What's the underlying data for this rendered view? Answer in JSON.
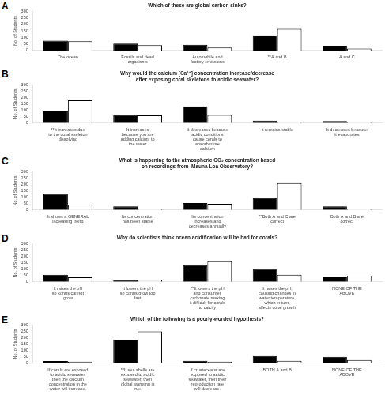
{
  "chart_data": [
    {
      "type": "bar",
      "title": "Which of these are global carbon sinks?",
      "annotations": [
        "A"
      ],
      "y_label": "No. of Students",
      "categories": [
        "The ocean",
        "Fossils and dead\norganisms",
        "Automobile and\nfactory emissions",
        "**A and B",
        "A and C"
      ],
      "series": [
        {
          "color": "black",
          "values": [
            75,
            52,
            43,
            115,
            35
          ]
        },
        {
          "color": "white",
          "values": [
            70,
            40,
            22,
            165,
            15
          ]
        }
      ],
      "ylim": [
        0,
        300
      ],
      "yticks": [
        0,
        50,
        100,
        150,
        200,
        250,
        300
      ],
      "grid": false
    },
    {
      "type": "bar",
      "title": "Why would the calcium [Ca²⁺] concentration increase/decrease\nafter exposing coral skeletons to acidic seawater?",
      "annotations": [
        "B"
      ],
      "y_label": "No. of Students",
      "categories": [
        "**It increases due\nto the coral skeleton\ndissolving",
        "It increases\nbecause you are\nadding calcium to\nthe water",
        "It decreases because\nacidic conditions\ncause corals to\nabsorb more\ncalcium",
        "It remains stable",
        "It decreases because\nit evaporates"
      ],
      "series": [
        {
          "color": "black",
          "values": [
            97,
            62,
            130,
            18,
            15
          ]
        },
        {
          "color": "white",
          "values": [
            178,
            60,
            63,
            10,
            10
          ]
        }
      ],
      "ylim": [
        0,
        300
      ],
      "yticks": [
        0,
        50,
        100,
        150,
        200,
        250,
        300
      ],
      "grid": false
    },
    {
      "type": "bar",
      "title": "What is happening to the atmospheric CO₂ concentration based\non recordings from  Mauna Loa Observatory?",
      "annotations": [
        "C"
      ],
      "y_label": "No. of Students",
      "categories": [
        "It shows a GENERAL\nincreasing trend",
        "Its concentration\nhas been stable",
        "Its concentration\nincreases and\ndecreases annually",
        "**Both A and C are\ncorrect",
        "Both A and B are\ncorrect"
      ],
      "series": [
        {
          "color": "black",
          "values": [
            125,
            28,
            55,
            93,
            28
          ]
        },
        {
          "color": "white",
          "values": [
            42,
            10,
            48,
            210,
            10
          ]
        }
      ],
      "ylim": [
        0,
        300
      ],
      "yticks": [
        0,
        50,
        100,
        150,
        200,
        250,
        300
      ],
      "grid": false
    },
    {
      "type": "bar",
      "title": "Why do scientists think ocean acidification will be bad for corals?",
      "annotations": [
        "D"
      ],
      "y_label": "No. of Students",
      "categories": [
        "It raises the pH\nso corals cannot\ngrow",
        "It lowers the pH\nso corals grow too\nfast",
        "**It lowers the pH\nand consumes\ncarbonate making\nit difficult for corals\nto calcify",
        "It raises the pH,\ncausing changes in\nwater temperature,\nwhich in turn,\naffects coral growth",
        "NONE OF THE\nABOVE"
      ],
      "series": [
        {
          "color": "black",
          "values": [
            55,
            12,
            130,
            100,
            35
          ]
        },
        {
          "color": "white",
          "values": [
            35,
            15,
            160,
            55,
            48
          ]
        }
      ],
      "ylim": [
        0,
        300
      ],
      "yticks": [
        0,
        50,
        100,
        150,
        200,
        250,
        300
      ],
      "grid": false
    },
    {
      "type": "bar",
      "title": "Which of the following is a poorly-worded hypothesis?",
      "annotations": [
        "E"
      ],
      "y_label": "No. of Students",
      "categories": [
        "If corals are exposed\nto acidic seawater,\nthen the calcium\nconcentration in the\nwater will increase.",
        "**If sea shells are\nexposed to acidic\nseawater, then\nglobal warming is\ntrue.",
        "If crustaceans are\nexposed to acidic\nseawater, then their\nreproduction rate\nwill decrease.",
        "BOTH A and B",
        "NONE OF THE\nABOVE"
      ],
      "series": [
        {
          "color": "black",
          "values": [
            17,
            183,
            18,
            55,
            50
          ]
        },
        {
          "color": "white",
          "values": [
            12,
            248,
            13,
            18,
            25
          ]
        }
      ],
      "ylim": [
        0,
        300
      ],
      "yticks": [
        0,
        50,
        100,
        150,
        200,
        250,
        300
      ],
      "grid": false
    }
  ]
}
